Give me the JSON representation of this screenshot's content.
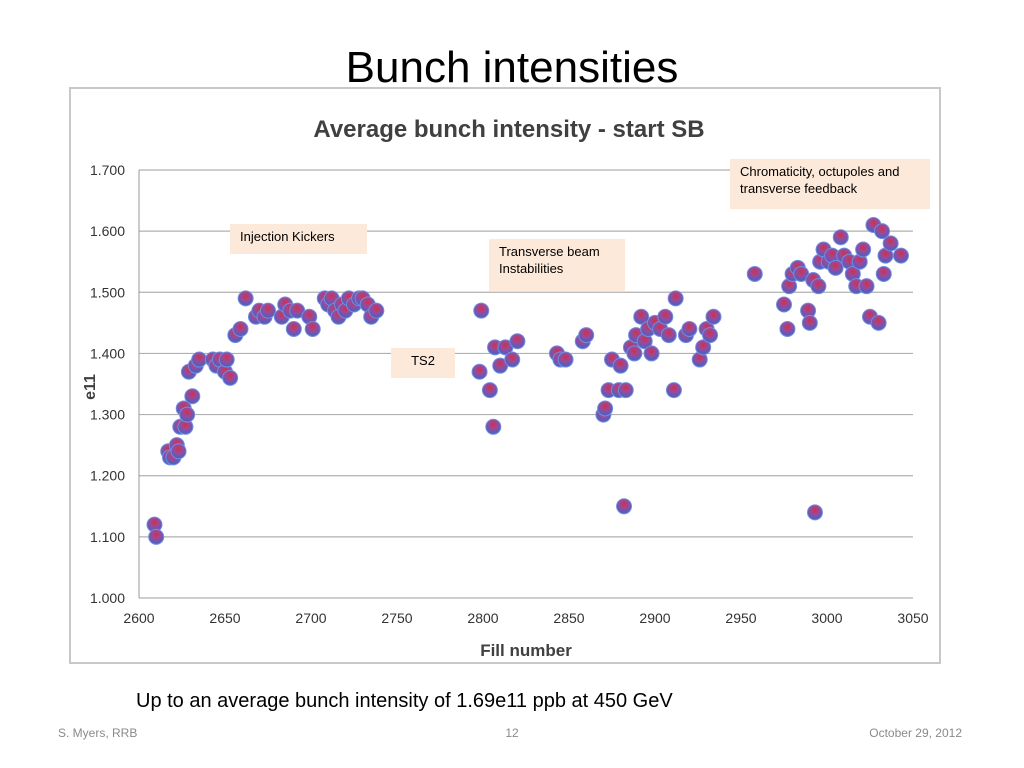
{
  "slide": {
    "title": "Bunch intensities",
    "caption": "Up to an average bunch intensity of 1.69e11 ppb at 450 GeV",
    "footer_left": "S. Myers, RRB",
    "footer_center": "12",
    "footer_right": "October 29, 2012"
  },
  "annotations": {
    "injection_kickers": "Injection Kickers",
    "transverse_beam": "Transverse beam Instabilities",
    "ts2": "TS2",
    "chromaticity": "Chromaticity, octupoles and transverse feedback"
  },
  "colors": {
    "point_fill": "#4a6fd4",
    "point_top": "#d0304a",
    "grid": "#b0b0b0",
    "annotation_bg": "#fde9d9"
  },
  "chart_data": {
    "type": "scatter",
    "title": "Average bunch intensity - start SB",
    "xlabel": "Fill number",
    "ylabel": "e11",
    "xlim": [
      2600,
      3050
    ],
    "ylim": [
      1.0,
      1.7
    ],
    "x_ticks": [
      "2600",
      "2650",
      "2700",
      "2750",
      "2800",
      "2850",
      "2900",
      "2950",
      "3000",
      "3050"
    ],
    "y_ticks": [
      "1.000",
      "1.100",
      "1.200",
      "1.300",
      "1.400",
      "1.500",
      "1.600",
      "1.700"
    ],
    "grid": "horizontal",
    "points": [
      [
        2609,
        1.12
      ],
      [
        2610,
        1.1
      ],
      [
        2617,
        1.24
      ],
      [
        2618,
        1.23
      ],
      [
        2620,
        1.23
      ],
      [
        2622,
        1.25
      ],
      [
        2623,
        1.24
      ],
      [
        2624,
        1.28
      ],
      [
        2626,
        1.31
      ],
      [
        2627,
        1.28
      ],
      [
        2628,
        1.3
      ],
      [
        2629,
        1.37
      ],
      [
        2631,
        1.33
      ],
      [
        2633,
        1.38
      ],
      [
        2635,
        1.39
      ],
      [
        2643,
        1.39
      ],
      [
        2645,
        1.38
      ],
      [
        2647,
        1.39
      ],
      [
        2650,
        1.37
      ],
      [
        2651,
        1.39
      ],
      [
        2653,
        1.36
      ],
      [
        2656,
        1.43
      ],
      [
        2659,
        1.44
      ],
      [
        2662,
        1.49
      ],
      [
        2668,
        1.46
      ],
      [
        2670,
        1.47
      ],
      [
        2673,
        1.46
      ],
      [
        2675,
        1.47
      ],
      [
        2683,
        1.46
      ],
      [
        2685,
        1.48
      ],
      [
        2688,
        1.47
      ],
      [
        2690,
        1.44
      ],
      [
        2692,
        1.47
      ],
      [
        2699,
        1.46
      ],
      [
        2701,
        1.44
      ],
      [
        2708,
        1.49
      ],
      [
        2710,
        1.48
      ],
      [
        2712,
        1.49
      ],
      [
        2714,
        1.47
      ],
      [
        2716,
        1.46
      ],
      [
        2718,
        1.48
      ],
      [
        2720,
        1.47
      ],
      [
        2722,
        1.49
      ],
      [
        2725,
        1.48
      ],
      [
        2728,
        1.49
      ],
      [
        2730,
        1.49
      ],
      [
        2733,
        1.48
      ],
      [
        2735,
        1.46
      ],
      [
        2738,
        1.47
      ],
      [
        2798,
        1.37
      ],
      [
        2799,
        1.47
      ],
      [
        2804,
        1.34
      ],
      [
        2806,
        1.28
      ],
      [
        2807,
        1.41
      ],
      [
        2810,
        1.38
      ],
      [
        2813,
        1.41
      ],
      [
        2817,
        1.39
      ],
      [
        2820,
        1.42
      ],
      [
        2843,
        1.4
      ],
      [
        2845,
        1.39
      ],
      [
        2848,
        1.39
      ],
      [
        2858,
        1.42
      ],
      [
        2860,
        1.43
      ],
      [
        2870,
        1.3
      ],
      [
        2871,
        1.31
      ],
      [
        2873,
        1.34
      ],
      [
        2875,
        1.39
      ],
      [
        2879,
        1.34
      ],
      [
        2880,
        1.38
      ],
      [
        2882,
        1.15
      ],
      [
        2883,
        1.34
      ],
      [
        2886,
        1.41
      ],
      [
        2888,
        1.4
      ],
      [
        2889,
        1.43
      ],
      [
        2892,
        1.46
      ],
      [
        2894,
        1.42
      ],
      [
        2896,
        1.44
      ],
      [
        2898,
        1.4
      ],
      [
        2900,
        1.45
      ],
      [
        2903,
        1.44
      ],
      [
        2906,
        1.46
      ],
      [
        2908,
        1.43
      ],
      [
        2911,
        1.34
      ],
      [
        2912,
        1.49
      ],
      [
        2918,
        1.43
      ],
      [
        2920,
        1.44
      ],
      [
        2926,
        1.39
      ],
      [
        2928,
        1.41
      ],
      [
        2930,
        1.44
      ],
      [
        2932,
        1.43
      ],
      [
        2934,
        1.46
      ],
      [
        2958,
        1.53
      ],
      [
        2975,
        1.48
      ],
      [
        2977,
        1.44
      ],
      [
        2978,
        1.51
      ],
      [
        2980,
        1.53
      ],
      [
        2983,
        1.54
      ],
      [
        2985,
        1.53
      ],
      [
        2989,
        1.47
      ],
      [
        2990,
        1.45
      ],
      [
        2992,
        1.52
      ],
      [
        2993,
        1.14
      ],
      [
        2995,
        1.51
      ],
      [
        2996,
        1.55
      ],
      [
        2998,
        1.57
      ],
      [
        3001,
        1.55
      ],
      [
        3003,
        1.56
      ],
      [
        3005,
        1.54
      ],
      [
        3008,
        1.59
      ],
      [
        3010,
        1.56
      ],
      [
        3013,
        1.55
      ],
      [
        3015,
        1.53
      ],
      [
        3017,
        1.51
      ],
      [
        3019,
        1.55
      ],
      [
        3021,
        1.57
      ],
      [
        3023,
        1.51
      ],
      [
        3025,
        1.46
      ],
      [
        3027,
        1.61
      ],
      [
        3030,
        1.45
      ],
      [
        3032,
        1.6
      ],
      [
        3034,
        1.56
      ],
      [
        3037,
        1.58
      ],
      [
        3043,
        1.56
      ],
      [
        3033,
        1.53
      ]
    ]
  }
}
